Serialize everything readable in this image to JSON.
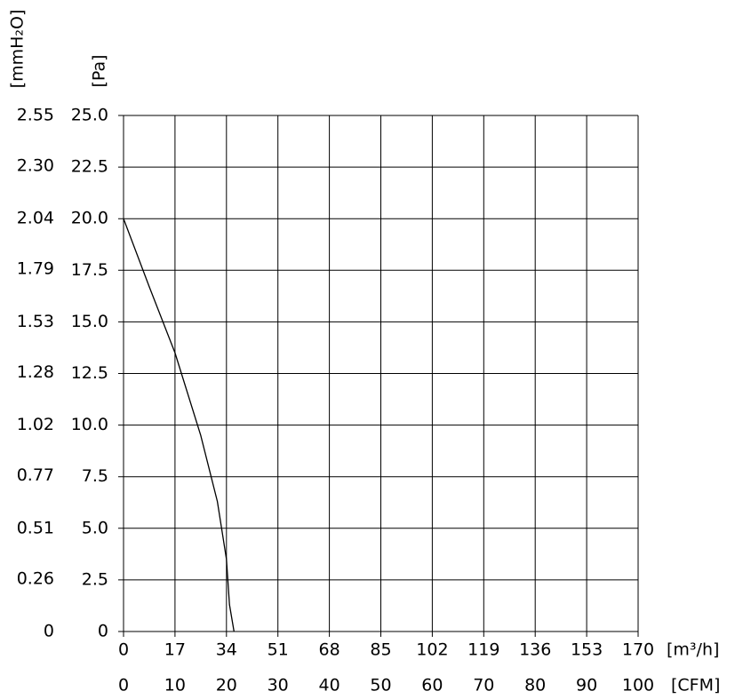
{
  "chart_data": {
    "type": "line",
    "ylabel": "[Pa]",
    "y2label": "[mmH₂O]",
    "xlabel": "[m³/h]",
    "x2label": "[CFM]",
    "x": [
      0,
      8.5,
      17,
      25.5,
      31,
      34,
      35,
      36.5
    ],
    "series": [
      {
        "name": null,
        "color": "#000000",
        "values": [
          20,
          16.7,
          13.5,
          9.5,
          6.3,
          3.5,
          1.3,
          0
        ]
      }
    ],
    "xlim": [
      0,
      170
    ],
    "xticks": [
      0,
      17,
      34,
      51,
      68,
      85,
      102,
      119,
      136,
      153,
      170
    ],
    "x2lim": [
      0,
      100
    ],
    "x2ticks": [
      0,
      10,
      20,
      30,
      40,
      50,
      60,
      70,
      80,
      90,
      100
    ],
    "ylim": [
      0,
      25
    ],
    "yticks": [
      0,
      2.5,
      {
        "value": 5,
        "label": "5.0"
      },
      7.5,
      {
        "value": 10,
        "label": "10.0"
      },
      12.5,
      {
        "value": 15,
        "label": "15.0"
      },
      17.5,
      {
        "value": 20,
        "label": "20.0"
      },
      22.5,
      {
        "value": 25,
        "label": "25.0"
      }
    ],
    "y2lim": [
      0,
      2.55
    ],
    "y2ticks": [
      0,
      0.26,
      0.51,
      0.77,
      1.02,
      1.28,
      1.53,
      1.79,
      2.04,
      {
        "value": 2.3,
        "label": "2.30"
      },
      2.55
    ],
    "grid": true
  }
}
